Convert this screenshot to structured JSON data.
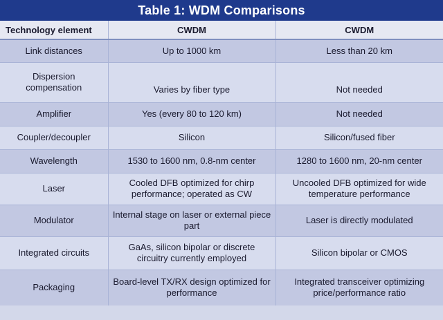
{
  "title": "Table 1: WDM Comparisons",
  "headers": [
    "Technology element",
    "CWDM",
    "CWDM"
  ],
  "rows": [
    {
      "element": "Link distances",
      "col1": "Up to 1000 km",
      "col2": "Less than 20 km"
    },
    {
      "element": "Dispersion compensation",
      "col1": "Varies by fiber type",
      "col2": "Not needed"
    },
    {
      "element": "Amplifier",
      "col1": "Yes (every 80 to 120 km)",
      "col2": "Not needed"
    },
    {
      "element": "Coupler/decoupler",
      "col1": "Silicon",
      "col2": "Silicon/fused fiber"
    },
    {
      "element": "Wavelength",
      "col1": "1530 to 1600 nm, 0.8-nm center",
      "col2": "1280 to 1600 nm, 20-nm center"
    },
    {
      "element": "Laser",
      "col1": "Cooled DFB optimized for chirp performance; operated as CW",
      "col2": "Uncooled DFB optimized for wide temperature performance"
    },
    {
      "element": "Modulator",
      "col1": "Internal stage on laser or external piece part",
      "col2": "Laser is directly modulated"
    },
    {
      "element": "Integrated circuits",
      "col1": "GaAs, silicon bipolar or discrete circuitry currently employed",
      "col2": "Silicon bipolar or CMOS"
    },
    {
      "element": "Packaging",
      "col1": "Board-level TX/RX design optimized for performance",
      "col2": "Integrated transceiver optimizing price/performance ratio"
    }
  ]
}
